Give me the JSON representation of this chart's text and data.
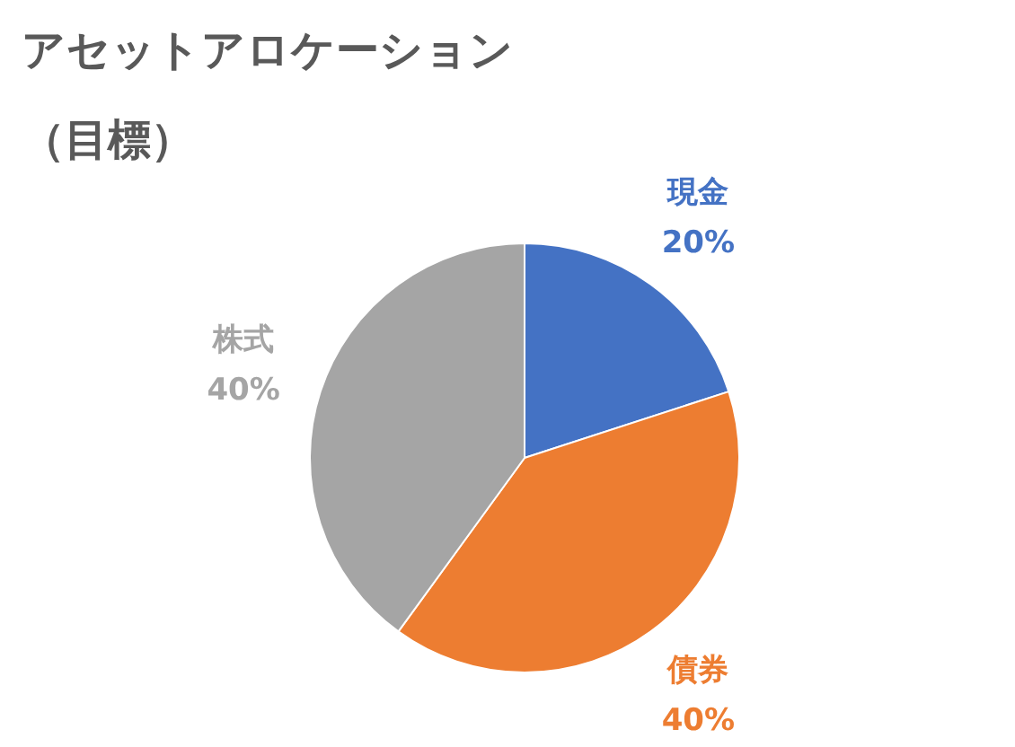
{
  "chart_data": {
    "type": "pie",
    "title": "アセットアロケーション",
    "subtitle": "（目標）",
    "categories": [
      "現金",
      "債券",
      "株式"
    ],
    "values": [
      20,
      40,
      40
    ],
    "value_labels": [
      "20%",
      "40%",
      "40%"
    ],
    "colors": [
      "#4472c4",
      "#ed7d31",
      "#a5a5a5"
    ],
    "legend": false
  }
}
